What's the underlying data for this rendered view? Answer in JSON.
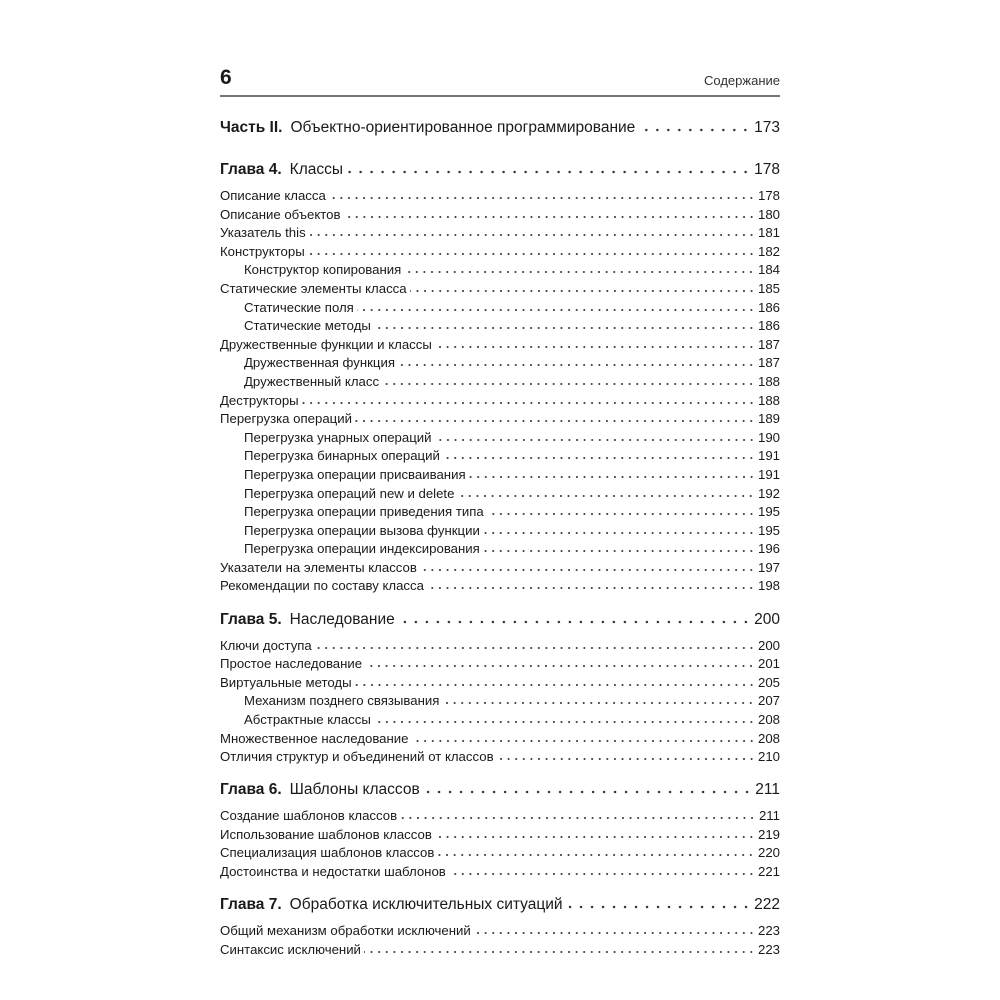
{
  "header": {
    "page_number": "6",
    "running_title": "Содержание"
  },
  "toc": [
    {
      "type": "part",
      "label": "Часть II.",
      "title": "Объектно-ориентированное программирование",
      "page": "173"
    },
    {
      "type": "chapter",
      "label": "Глава 4.",
      "title": "Классы",
      "page": "178"
    },
    {
      "type": "section",
      "title": "Описание класса",
      "page": "178"
    },
    {
      "type": "section",
      "title": "Описание объектов",
      "page": "180"
    },
    {
      "type": "section",
      "title": "Указатель this",
      "page": "181"
    },
    {
      "type": "section",
      "title": "Конструкторы",
      "page": "182"
    },
    {
      "type": "sub",
      "title": "Конструктор копирования",
      "page": "184"
    },
    {
      "type": "section",
      "title": "Статические элементы класса",
      "page": "185"
    },
    {
      "type": "sub",
      "title": "Статические поля",
      "page": "186"
    },
    {
      "type": "sub",
      "title": "Статические методы",
      "page": "186"
    },
    {
      "type": "section",
      "title": "Дружественные функции и классы",
      "page": "187"
    },
    {
      "type": "sub",
      "title": "Дружественная функция",
      "page": "187"
    },
    {
      "type": "sub",
      "title": "Дружественный класс",
      "page": "188"
    },
    {
      "type": "section",
      "title": "Деструкторы",
      "page": "188"
    },
    {
      "type": "section",
      "title": "Перегрузка операций",
      "page": "189"
    },
    {
      "type": "sub",
      "title": "Перегрузка унарных операций",
      "page": "190"
    },
    {
      "type": "sub",
      "title": "Перегрузка бинарных операций",
      "page": "191"
    },
    {
      "type": "sub",
      "title": "Перегрузка операции присваивания",
      "page": "191"
    },
    {
      "type": "sub",
      "title": "Перегрузка операций new и delete",
      "page": "192"
    },
    {
      "type": "sub",
      "title": "Перегрузка операции приведения типа",
      "page": "195"
    },
    {
      "type": "sub",
      "title": "Перегрузка операции вызова функции",
      "page": "195"
    },
    {
      "type": "sub",
      "title": "Перегрузка операции индексирования",
      "page": "196"
    },
    {
      "type": "section",
      "title": "Указатели на элементы классов",
      "page": "197"
    },
    {
      "type": "section",
      "title": "Рекомендации по составу класса",
      "page": "198"
    },
    {
      "type": "chapter",
      "label": "Глава 5.",
      "title": "Наследование",
      "page": "200"
    },
    {
      "type": "section",
      "title": "Ключи доступа",
      "page": "200"
    },
    {
      "type": "section",
      "title": "Простое наследование",
      "page": "201"
    },
    {
      "type": "section",
      "title": "Виртуальные методы",
      "page": "205"
    },
    {
      "type": "sub",
      "title": "Механизм позднего связывания",
      "page": "207"
    },
    {
      "type": "sub",
      "title": "Абстрактные классы",
      "page": "208"
    },
    {
      "type": "section",
      "title": "Множественное наследование",
      "page": "208"
    },
    {
      "type": "section",
      "title": "Отличия структур и объединений от классов",
      "page": "210"
    },
    {
      "type": "chapter",
      "label": "Глава 6.",
      "title": "Шаблоны классов",
      "page": "211"
    },
    {
      "type": "section",
      "title": "Создание шаблонов классов",
      "page": "211"
    },
    {
      "type": "section",
      "title": "Использование шаблонов классов",
      "page": "219"
    },
    {
      "type": "section",
      "title": "Специализация шаблонов классов",
      "page": "220"
    },
    {
      "type": "section",
      "title": "Достоинства и недостатки шаблонов",
      "page": "221"
    },
    {
      "type": "chapter",
      "label": "Глава 7.",
      "title": "Обработка исключительных ситуаций",
      "page": "222"
    },
    {
      "type": "section",
      "title": "Общий механизм обработки исключений",
      "page": "223"
    },
    {
      "type": "section",
      "title": "Синтаксис исключений",
      "page": "223"
    }
  ]
}
